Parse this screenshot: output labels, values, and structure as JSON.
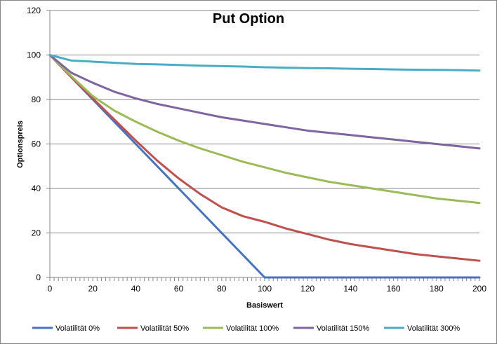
{
  "chart_data": {
    "type": "line",
    "title": "Put Option",
    "xlabel": "Basiswert",
    "ylabel": "Optionspreis",
    "xlim": [
      0,
      200
    ],
    "ylim": [
      0,
      120
    ],
    "x_ticks": [
      "0",
      "20",
      "40",
      "60",
      "80",
      "100",
      "120",
      "140",
      "160",
      "180",
      "200"
    ],
    "y_ticks": [
      "0",
      "20",
      "40",
      "60",
      "80",
      "100",
      "120"
    ],
    "grid": "horizontal",
    "legend_position": "bottom",
    "x": [
      0,
      10,
      20,
      30,
      40,
      50,
      60,
      70,
      80,
      90,
      100,
      110,
      120,
      130,
      140,
      150,
      160,
      170,
      180,
      190,
      200
    ],
    "series": [
      {
        "name": "Volatilität 0%",
        "color": "#4472c4",
        "values": [
          100,
          90,
          80,
          70,
          60,
          50,
          40,
          30,
          20,
          10,
          0,
          0,
          0,
          0,
          0,
          0,
          0,
          0,
          0,
          0,
          0
        ]
      },
      {
        "name": "Volatilität 50%",
        "color": "#c0504d",
        "values": [
          100,
          90,
          80.5,
          71,
          61.5,
          52.5,
          44.5,
          37.5,
          31.5,
          27.5,
          25,
          22,
          19.5,
          17,
          15,
          13.5,
          12,
          10.5,
          9.5,
          8.5,
          7.5
        ]
      },
      {
        "name": "Volatilität 100%",
        "color": "#9bbb59",
        "values": [
          100,
          90.5,
          81.5,
          75,
          70,
          65.5,
          61.5,
          58,
          55,
          52,
          49.5,
          47,
          45,
          43,
          41.5,
          40,
          38.5,
          37,
          35.5,
          34.5,
          33.5
        ]
      },
      {
        "name": "Volatilität 150%",
        "color": "#8064a2",
        "values": [
          100,
          92,
          87.5,
          83.5,
          80.5,
          78,
          76,
          74,
          72,
          70.5,
          69,
          67.5,
          66,
          65,
          64,
          63,
          62,
          61,
          60,
          59,
          58
        ]
      },
      {
        "name": "Volatilität 300%",
        "color": "#4bacc6",
        "values": [
          100,
          97.5,
          97,
          96.5,
          96,
          95.8,
          95.5,
          95.2,
          95,
          94.8,
          94.5,
          94.3,
          94.1,
          94,
          93.8,
          93.7,
          93.5,
          93.4,
          93.3,
          93.2,
          93
        ]
      }
    ]
  }
}
